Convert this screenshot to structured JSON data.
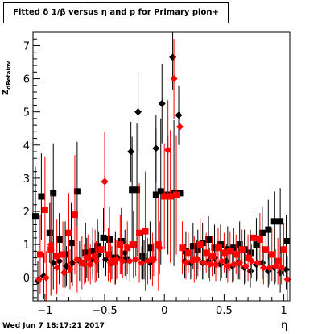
{
  "title": "Fitted δ 1/β versus η and p for Primary pion+",
  "footer_date": "Wed Jun  7 18:17:21 2017",
  "xlabel": "η",
  "ylabel_main": "Z",
  "ylabel_sub": "dBetainv",
  "colors": {
    "black_series": "#000000",
    "red_series": "#ff0000",
    "axis": "#000000"
  },
  "chart_data": {
    "type": "scatter",
    "xlim": [
      -1.1,
      1.05
    ],
    "ylim": [
      -0.7,
      7.4
    ],
    "x_ticks": [
      -1,
      -0.5,
      0,
      0.5,
      1
    ],
    "x_tick_labels": [
      "−1",
      "−0.5",
      "0",
      "0.5",
      "1"
    ],
    "y_ticks": [
      0,
      1,
      2,
      3,
      4,
      5,
      6,
      7
    ],
    "y_tick_labels": [
      "0",
      "1",
      "2",
      "3",
      "4",
      "5",
      "6",
      "7"
    ],
    "series": [
      {
        "color": "#000000",
        "marker": "square",
        "points": [
          [
            -1.08,
            1.85,
            1.5
          ],
          [
            -1.03,
            2.45,
            1.3
          ],
          [
            -0.96,
            1.35,
            0.9
          ],
          [
            -0.93,
            2.55,
            1.5
          ],
          [
            -0.88,
            1.15,
            0.8
          ],
          [
            -0.83,
            0.7,
            1.0
          ],
          [
            -0.78,
            1.05,
            1.2
          ],
          [
            -0.73,
            2.6,
            1.5
          ],
          [
            -0.66,
            0.75,
            0.9
          ],
          [
            -0.6,
            0.8,
            0.7
          ],
          [
            -0.56,
            0.95,
            0.8
          ],
          [
            -0.51,
            1.2,
            0.9
          ],
          [
            -0.46,
            1.15,
            1.0
          ],
          [
            -0.41,
            0.6,
            0.8
          ],
          [
            -0.36,
            1.1,
            1.0
          ],
          [
            -0.32,
            0.55,
            0.6
          ],
          [
            -0.27,
            2.65,
            1.6
          ],
          [
            -0.23,
            2.65,
            2.0
          ],
          [
            -0.18,
            0.65,
            0.7
          ],
          [
            -0.12,
            0.9,
            0.8
          ],
          [
            -0.07,
            2.5,
            2.0
          ],
          [
            -0.03,
            2.6,
            2.2
          ],
          [
            0.03,
            2.5,
            1.8
          ],
          [
            0.08,
            2.55,
            2.2
          ],
          [
            0.13,
            2.55,
            2.0
          ],
          [
            0.18,
            0.8,
            0.6
          ],
          [
            0.24,
            0.95,
            0.7
          ],
          [
            0.28,
            0.85,
            0.6
          ],
          [
            0.32,
            1.05,
            0.6
          ],
          [
            0.37,
            1.15,
            0.7
          ],
          [
            0.42,
            0.9,
            0.7
          ],
          [
            0.47,
            1.0,
            0.6
          ],
          [
            0.53,
            0.85,
            0.7
          ],
          [
            0.58,
            0.9,
            0.6
          ],
          [
            0.63,
            1.0,
            0.7
          ],
          [
            0.67,
            0.85,
            0.6
          ],
          [
            0.72,
            0.75,
            0.7
          ],
          [
            0.77,
            1.0,
            0.8
          ],
          [
            0.82,
            1.35,
            0.8
          ],
          [
            0.87,
            1.45,
            0.9
          ],
          [
            0.92,
            1.7,
            0.9
          ],
          [
            0.97,
            1.7,
            1.0
          ],
          [
            1.02,
            1.1,
            0.8
          ]
        ]
      },
      {
        "color": "#000000",
        "marker": "diamond",
        "points": [
          [
            -1.06,
            -0.1,
            0.6
          ],
          [
            -1.01,
            0.05,
            0.7
          ],
          [
            -0.93,
            0.45,
            0.8
          ],
          [
            -0.88,
            0.5,
            0.7
          ],
          [
            -0.82,
            0.35,
            0.6
          ],
          [
            -0.77,
            0.45,
            0.7
          ],
          [
            -0.71,
            0.5,
            0.6
          ],
          [
            -0.65,
            0.6,
            0.6
          ],
          [
            -0.6,
            0.55,
            0.6
          ],
          [
            -0.55,
            0.7,
            0.7
          ],
          [
            -0.49,
            0.55,
            0.5
          ],
          [
            -0.44,
            0.45,
            0.5
          ],
          [
            -0.39,
            0.6,
            0.6
          ],
          [
            -0.33,
            0.75,
            0.7
          ],
          [
            -0.28,
            3.8,
            0.9
          ],
          [
            -0.22,
            5.0,
            1.2
          ],
          [
            -0.17,
            0.55,
            0.6
          ],
          [
            -0.12,
            0.45,
            0.5
          ],
          [
            -0.07,
            3.9,
            1.0
          ],
          [
            -0.02,
            5.25,
            1.2
          ],
          [
            0.07,
            6.65,
            1.0
          ],
          [
            0.12,
            4.9,
            0.9
          ],
          [
            0.17,
            0.5,
            0.5
          ],
          [
            0.22,
            0.45,
            0.5
          ],
          [
            0.27,
            0.55,
            0.6
          ],
          [
            0.32,
            0.45,
            0.5
          ],
          [
            0.37,
            0.5,
            0.5
          ],
          [
            0.42,
            0.6,
            0.5
          ],
          [
            0.47,
            0.4,
            0.5
          ],
          [
            0.52,
            0.5,
            0.5
          ],
          [
            0.57,
            0.35,
            0.5
          ],
          [
            0.62,
            0.45,
            0.5
          ],
          [
            0.67,
            0.3,
            0.5
          ],
          [
            0.72,
            0.2,
            0.5
          ],
          [
            0.77,
            0.4,
            0.5
          ],
          [
            0.82,
            0.45,
            0.5
          ],
          [
            0.87,
            0.2,
            0.5
          ],
          [
            0.92,
            0.3,
            0.5
          ],
          [
            0.97,
            0.15,
            0.6
          ],
          [
            1.02,
            0.25,
            0.6
          ]
        ]
      },
      {
        "color": "#ff0000",
        "marker": "square",
        "points": [
          [
            -1.04,
            0.7,
            1.2
          ],
          [
            -1.0,
            2.05,
            1.6
          ],
          [
            -0.95,
            0.85,
            1.4
          ],
          [
            -0.9,
            0.65,
            1.1
          ],
          [
            -0.85,
            0.7,
            1.0
          ],
          [
            -0.8,
            1.35,
            1.2
          ],
          [
            -0.75,
            1.9,
            1.8
          ],
          [
            -0.69,
            0.45,
            0.8
          ],
          [
            -0.64,
            0.6,
            0.7
          ],
          [
            -0.58,
            0.65,
            0.8
          ],
          [
            -0.53,
            0.85,
            0.9
          ],
          [
            -0.47,
            0.7,
            0.8
          ],
          [
            -0.42,
            0.5,
            0.7
          ],
          [
            -0.37,
            1.0,
            0.9
          ],
          [
            -0.31,
            0.9,
            0.8
          ],
          [
            -0.26,
            1.0,
            1.0
          ],
          [
            -0.21,
            1.35,
            1.5
          ],
          [
            -0.16,
            1.4,
            1.8
          ],
          [
            -0.1,
            0.55,
            0.8
          ],
          [
            -0.05,
            1.0,
            1.4
          ],
          [
            0.0,
            2.45,
            1.6
          ],
          [
            0.05,
            2.45,
            2.0
          ],
          [
            0.1,
            2.5,
            1.8
          ],
          [
            0.15,
            0.9,
            0.8
          ],
          [
            0.2,
            0.75,
            0.6
          ],
          [
            0.25,
            0.55,
            0.7
          ],
          [
            0.3,
            1.0,
            0.8
          ],
          [
            0.35,
            0.75,
            0.6
          ],
          [
            0.4,
            0.65,
            0.6
          ],
          [
            0.45,
            0.9,
            0.6
          ],
          [
            0.5,
            0.75,
            0.6
          ],
          [
            0.55,
            0.8,
            0.6
          ],
          [
            0.6,
            0.7,
            0.6
          ],
          [
            0.65,
            0.85,
            0.6
          ],
          [
            0.7,
            0.6,
            0.7
          ],
          [
            0.75,
            1.2,
            0.8
          ],
          [
            0.8,
            1.15,
            0.8
          ],
          [
            0.85,
            0.85,
            0.7
          ],
          [
            0.9,
            0.7,
            0.8
          ],
          [
            0.95,
            0.5,
            0.7
          ],
          [
            1.0,
            0.85,
            0.8
          ]
        ]
      },
      {
        "color": "#ff0000",
        "marker": "diamond",
        "points": [
          [
            -1.05,
            -0.05,
            1.0
          ],
          [
            -0.99,
            0.0,
            0.8
          ],
          [
            -0.95,
            1.0,
            1.5
          ],
          [
            -0.9,
            0.3,
            0.8
          ],
          [
            -0.84,
            0.15,
            0.7
          ],
          [
            -0.79,
            0.25,
            0.6
          ],
          [
            -0.73,
            0.55,
            1.0
          ],
          [
            -0.67,
            0.4,
            0.6
          ],
          [
            -0.62,
            0.4,
            0.6
          ],
          [
            -0.57,
            0.5,
            0.6
          ],
          [
            -0.5,
            2.9,
            1.5
          ],
          [
            -0.45,
            0.45,
            0.6
          ],
          [
            -0.4,
            0.55,
            0.6
          ],
          [
            -0.35,
            0.5,
            0.5
          ],
          [
            -0.29,
            0.5,
            0.6
          ],
          [
            -0.24,
            0.55,
            0.5
          ],
          [
            -0.19,
            0.45,
            0.5
          ],
          [
            -0.14,
            0.5,
            0.7
          ],
          [
            -0.09,
            0.55,
            0.5
          ],
          [
            -0.04,
            0.9,
            0.8
          ],
          [
            0.03,
            3.85,
            1.5
          ],
          [
            0.08,
            6.0,
            1.2
          ],
          [
            0.13,
            4.55,
            1.0
          ],
          [
            0.18,
            0.45,
            0.5
          ],
          [
            0.23,
            0.5,
            0.5
          ],
          [
            0.28,
            0.55,
            0.5
          ],
          [
            0.33,
            0.45,
            0.5
          ],
          [
            0.38,
            0.4,
            0.5
          ],
          [
            0.43,
            0.4,
            0.5
          ],
          [
            0.48,
            0.5,
            0.5
          ],
          [
            0.53,
            0.35,
            0.5
          ],
          [
            0.58,
            0.4,
            0.5
          ],
          [
            0.63,
            0.45,
            0.5
          ],
          [
            0.68,
            0.35,
            0.5
          ],
          [
            0.73,
            0.5,
            0.5
          ],
          [
            0.78,
            0.45,
            0.5
          ],
          [
            0.83,
            0.3,
            0.5
          ],
          [
            0.88,
            0.3,
            0.5
          ],
          [
            0.93,
            0.35,
            0.5
          ],
          [
            0.98,
            0.3,
            0.5
          ],
          [
            1.03,
            -0.05,
            0.7
          ]
        ]
      }
    ]
  }
}
